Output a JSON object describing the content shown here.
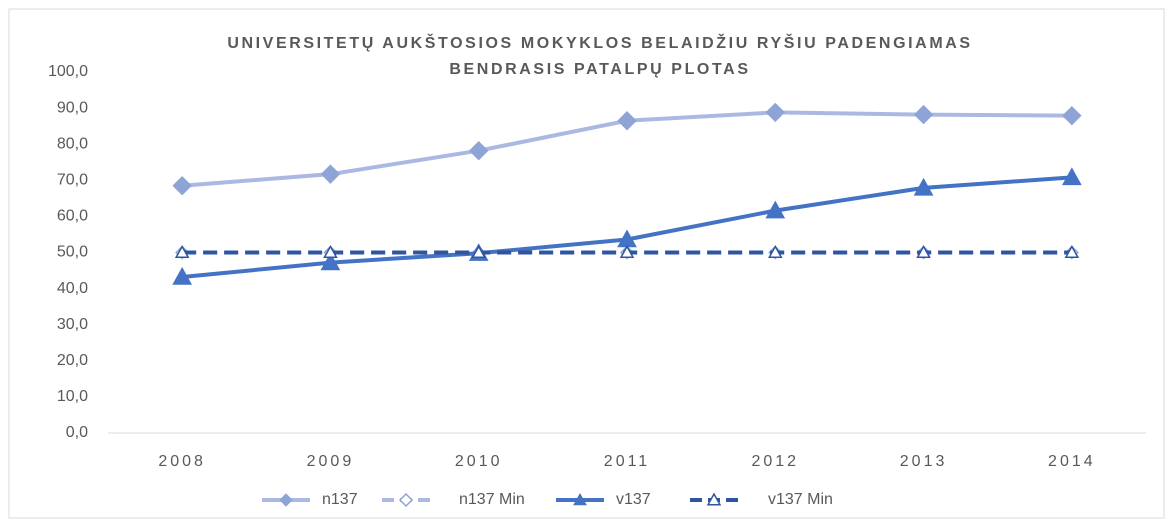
{
  "chart_data": {
    "type": "line",
    "title": [
      "UNIVERSITETŲ AUKŠTOSIOS MOKYKLOS BELAIDŽIU RYŠIU PADENGIAMAS",
      "BENDRASIS PATALPŲ PLOTAS"
    ],
    "categories": [
      "2008",
      "2009",
      "2010",
      "2011",
      "2012",
      "2013",
      "2014"
    ],
    "series": [
      {
        "name": "n137",
        "color": "#aab9e1",
        "marker_color": "#8ea3d6",
        "marker": "diamond",
        "dash": false,
        "hollow": false,
        "values": [
          68.5,
          71.7,
          78.2,
          86.5,
          88.8,
          88.2,
          87.9
        ]
      },
      {
        "name": "n137 Min",
        "color": "#aab9e1",
        "marker_color": "#8ea3d6",
        "marker": "diamond",
        "dash": true,
        "hollow": true,
        "values": [
          50,
          50,
          50,
          50,
          50,
          50,
          50
        ]
      },
      {
        "name": "v137",
        "color": "#4472c4",
        "marker_color": "#4472c4",
        "marker": "triangle",
        "dash": false,
        "hollow": false,
        "values": [
          43.2,
          47.2,
          49.8,
          53.6,
          61.6,
          67.9,
          70.8
        ]
      },
      {
        "name": "v137 Min",
        "color": "#2f54a0",
        "marker_color": "#2f54a0",
        "marker": "triangle",
        "dash": true,
        "hollow": true,
        "values": [
          50,
          50,
          50,
          50,
          50,
          50,
          50
        ]
      }
    ],
    "ylim": [
      0,
      100
    ],
    "yticks": [
      {
        "value": 0,
        "label": "0,0"
      },
      {
        "value": 10,
        "label": "10,0"
      },
      {
        "value": 20,
        "label": "20,0"
      },
      {
        "value": 30,
        "label": "30,0"
      },
      {
        "value": 40,
        "label": "40,0"
      },
      {
        "value": 50,
        "label": "50,0"
      },
      {
        "value": 60,
        "label": "60,0"
      },
      {
        "value": 70,
        "label": "70,0"
      },
      {
        "value": 80,
        "label": "80,0"
      },
      {
        "value": 90,
        "label": "90,0"
      },
      {
        "value": 100,
        "label": "100,0"
      }
    ],
    "grid": false,
    "legend": "bottom"
  }
}
